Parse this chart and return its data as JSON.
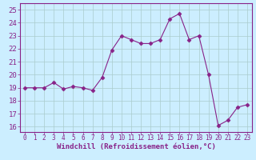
{
  "x": [
    0,
    1,
    2,
    3,
    4,
    5,
    6,
    7,
    8,
    9,
    10,
    11,
    12,
    13,
    14,
    15,
    16,
    17,
    18,
    19,
    20,
    21,
    22,
    23
  ],
  "y": [
    19.0,
    19.0,
    19.0,
    19.4,
    18.9,
    19.1,
    19.0,
    18.8,
    19.8,
    21.9,
    23.0,
    22.7,
    22.4,
    22.4,
    22.7,
    24.3,
    24.7,
    22.7,
    23.0,
    20.0,
    16.1,
    16.5,
    17.5,
    17.7
  ],
  "line_color": "#882288",
  "marker": "D",
  "marker_size": 2.5,
  "bg_color": "#cceeff",
  "grid_color": "#aacccc",
  "axis_color": "#882288",
  "tick_color": "#882288",
  "xlabel": "Windchill (Refroidissement éolien,°C)",
  "xlabel_fontsize": 6.5,
  "ytick_fontsize": 6.5,
  "xtick_fontsize": 5.5,
  "yticks": [
    16,
    17,
    18,
    19,
    20,
    21,
    22,
    23,
    24,
    25
  ],
  "xticks": [
    0,
    1,
    2,
    3,
    4,
    5,
    6,
    7,
    8,
    9,
    10,
    11,
    12,
    13,
    14,
    15,
    16,
    17,
    18,
    19,
    20,
    21,
    22,
    23
  ],
  "ylim": [
    15.6,
    25.5
  ],
  "xlim": [
    -0.5,
    23.5
  ]
}
